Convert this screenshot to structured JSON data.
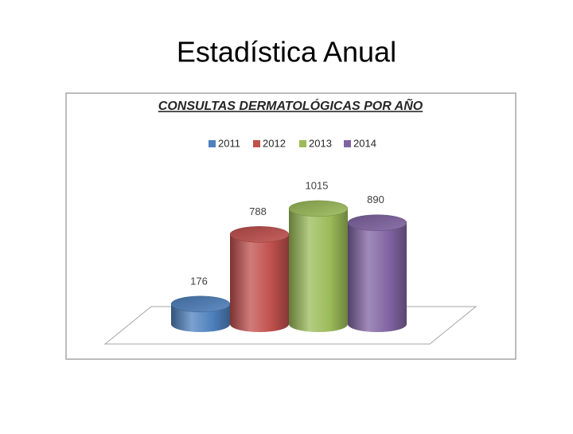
{
  "page_title": "Estadística Anual",
  "chart_data": {
    "type": "cylinder3d",
    "title": "CONSULTAS DERMATOLÓGICAS  POR AÑO",
    "series": [
      {
        "name": "2011",
        "color": "#4f81bd",
        "values": [
          176
        ]
      },
      {
        "name": "2012",
        "color": "#c0504d",
        "values": [
          788
        ]
      },
      {
        "name": "2013",
        "color": "#9bbb59",
        "values": [
          1015
        ]
      },
      {
        "name": "2014",
        "color": "#8064a2",
        "values": [
          890
        ]
      }
    ],
    "legend": "top"
  }
}
